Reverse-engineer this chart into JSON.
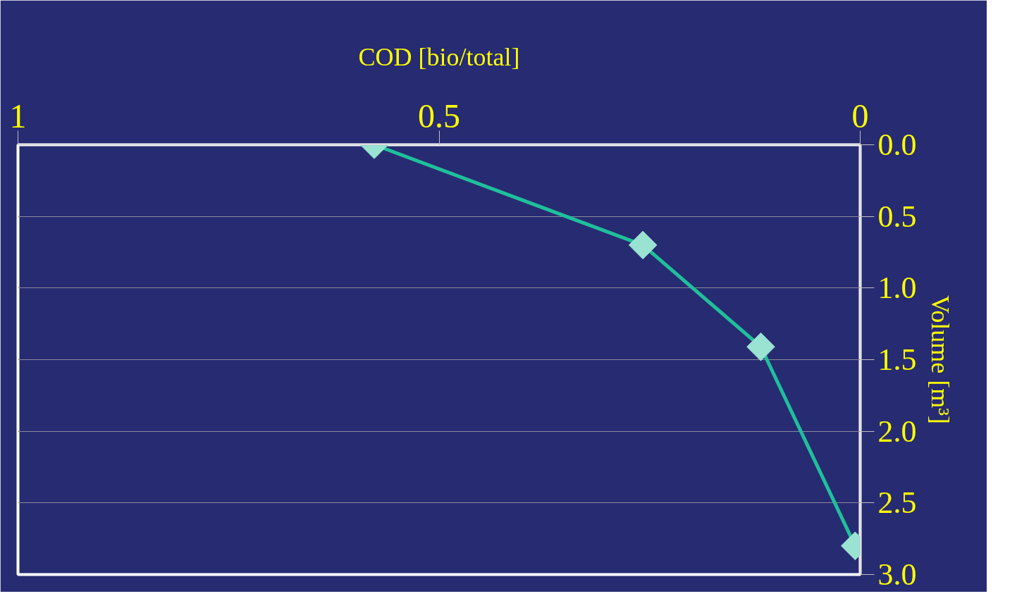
{
  "chart_data": {
    "type": "line",
    "xlabel": "COD [bio/total]",
    "ylabel": "Volume [m³]",
    "xlim": [
      1,
      0
    ],
    "ylim": [
      3,
      0
    ],
    "xticks": [
      1,
      0.5,
      0
    ],
    "yticks": [
      {
        "value": 0,
        "label": "0.0"
      },
      0.5,
      {
        "value": 1,
        "label": "1.0"
      },
      1.5,
      {
        "value": 2,
        "label": "2.0"
      },
      2.5,
      {
        "value": 3,
        "label": "3.0"
      }
    ],
    "grid": "y",
    "marker": "diamond",
    "line_style": "solid",
    "series": [
      {
        "color": "#1fbf9b",
        "x": [
          0.577,
          0.258,
          0.118,
          0.006
        ],
        "values": [
          0,
          0.7,
          1.41,
          2.8
        ]
      }
    ]
  }
}
